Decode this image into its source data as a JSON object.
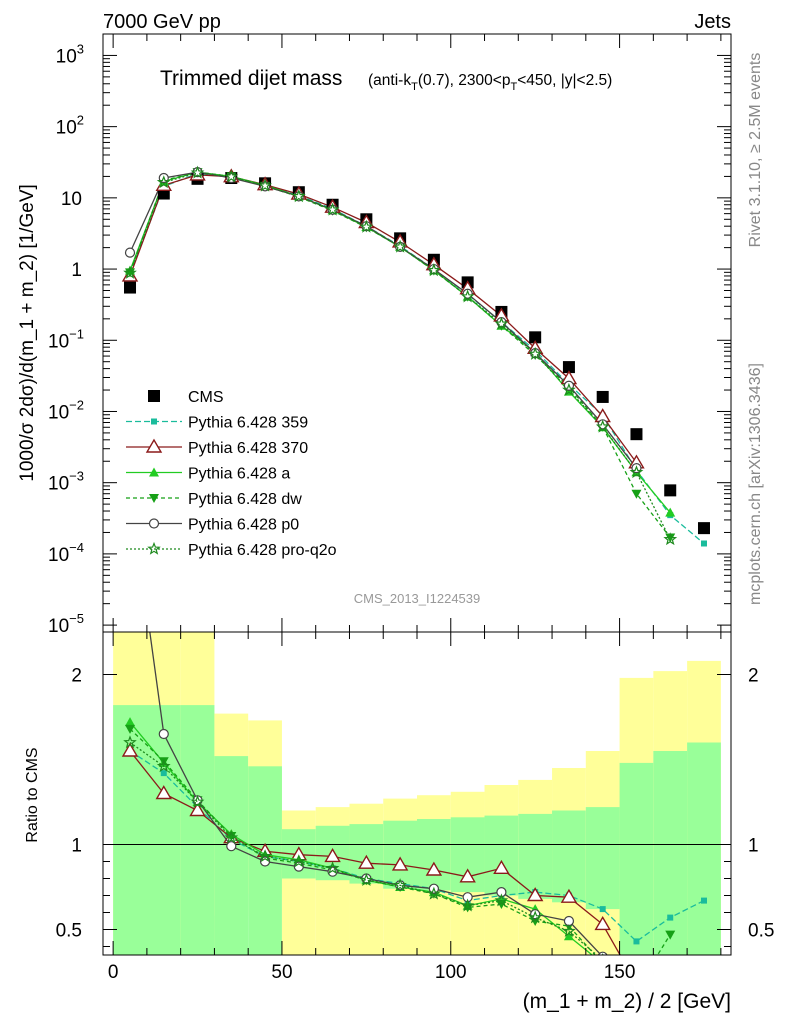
{
  "header": {
    "left": "7000 GeV pp",
    "right": "Jets"
  },
  "side_labels": {
    "rivet": "Rivet 3.1.10, ≥ 2.5M events",
    "mcplots": "mcplots.cern.ch [arXiv:1306.3436]"
  },
  "colors": {
    "data": "#000000",
    "p359": "#1abc9c",
    "p370": "#8b1a1a",
    "a": "#22cc22",
    "dw": "#16a016",
    "p0": "#444444",
    "proq2o": "#1e8a1e",
    "band_yellow": "#ffff99",
    "band_green": "#99ff99"
  },
  "chart_data": [
    {
      "type": "scatter",
      "title": "Trimmed dijet mass",
      "subtitle": "(anti-k_T(0.7), 2300<p_T<450, |y|<2.5)",
      "watermark": "CMS_2013_I1224539",
      "xlabel": "(m_1 + m_2) / 2 [GeV]",
      "ylabel": "1000/σ 2dσ)/d(m_1 + m_2) [1/GeV]",
      "yscale": "log",
      "xlim": [
        -3,
        183
      ],
      "ylim": [
        8e-06,
        2000
      ],
      "x_ticks": [
        0,
        50,
        100,
        150
      ],
      "y_ticks": [
        {
          "v": 1e-05,
          "m": "10",
          "e": "−5"
        },
        {
          "v": 0.0001,
          "m": "10",
          "e": "−4"
        },
        {
          "v": 0.001,
          "m": "10",
          "e": "−3"
        },
        {
          "v": 0.01,
          "m": "10",
          "e": "−2"
        },
        {
          "v": 0.1,
          "m": "10",
          "e": "−1"
        },
        {
          "v": 1,
          "m": "1",
          "e": ""
        },
        {
          "v": 10,
          "m": "10",
          "e": ""
        },
        {
          "v": 100,
          "m": "10",
          "e": "2"
        },
        {
          "v": 1000,
          "m": "10",
          "e": "3"
        }
      ],
      "legend_position": "center-left",
      "x": [
        5,
        15,
        25,
        35,
        45,
        55,
        65,
        75,
        85,
        95,
        105,
        115,
        125,
        135,
        145,
        155,
        165,
        175
      ],
      "series": [
        {
          "name": "CMS",
          "key": "data",
          "style": "data",
          "values": [
            0.55,
            11.5,
            18.5,
            19.0,
            16.0,
            12.0,
            8.0,
            5.0,
            2.7,
            1.35,
            0.65,
            0.25,
            0.11,
            0.042,
            0.016,
            0.0048,
            0.00078,
            0.00023
          ]
        },
        {
          "name": "Pythia 6.428 359",
          "key": "p359",
          "style": "square-dash",
          "values": [
            0.85,
            14.5,
            22.0,
            19.5,
            15.0,
            10.8,
            7.0,
            4.0,
            2.1,
            1.0,
            0.44,
            0.18,
            0.072,
            0.024,
            0.0088,
            0.0015,
            0.00035,
            0.00014
          ]
        },
        {
          "name": "Pythia 6.428 370",
          "key": "p370",
          "style": "triangle-open",
          "values": [
            0.8,
            15.0,
            21.0,
            19.8,
            15.3,
            11.3,
            7.4,
            4.5,
            2.4,
            1.15,
            0.53,
            0.22,
            0.077,
            0.029,
            0.0085,
            0.0019,
            null,
            null
          ]
        },
        {
          "name": "Pythia 6.428 a",
          "key": "a",
          "style": "triangle-solid",
          "values": [
            0.95,
            17.0,
            23.0,
            20.0,
            15.0,
            10.5,
            6.7,
            3.9,
            2.05,
            0.96,
            0.41,
            0.16,
            0.068,
            0.019,
            0.006,
            0.0014,
            0.00038,
            null
          ]
        },
        {
          "name": "Pythia 6.428 dw",
          "key": "dw",
          "style": "invtriangle-dash",
          "values": [
            0.9,
            17.5,
            23.0,
            20.0,
            14.7,
            10.3,
            6.6,
            3.85,
            2.05,
            0.95,
            0.41,
            0.16,
            0.062,
            0.022,
            0.0061,
            0.0007,
            0.00017,
            null
          ]
        },
        {
          "name": "Pythia 6.428 p0",
          "key": "p0",
          "style": "circle-open",
          "values": [
            1.7,
            19.0,
            23.0,
            19.0,
            14.5,
            10.5,
            6.8,
            4.0,
            2.05,
            1.0,
            0.45,
            0.18,
            0.066,
            0.023,
            0.0066,
            0.0016,
            null,
            null
          ]
        },
        {
          "name": "Pythia 6.428 pro-q2o",
          "key": "proq2o",
          "style": "star-dot",
          "values": [
            0.88,
            16.5,
            22.5,
            19.8,
            14.8,
            10.5,
            6.8,
            3.9,
            2.05,
            0.96,
            0.41,
            0.17,
            0.064,
            0.02,
            0.0061,
            0.0014,
            0.00016,
            null
          ]
        }
      ]
    },
    {
      "type": "line",
      "ylabel": "Ratio to CMS",
      "xlabel": "(m_1 + m_2) / 2 [GeV]",
      "xlim": [
        -3,
        183
      ],
      "ylim": [
        0.35,
        2.25
      ],
      "x_ticks": [
        0,
        50,
        100,
        150
      ],
      "y_ticks": [
        0.5,
        1,
        2
      ],
      "reference_line": 1,
      "bands": {
        "edges": [
          0,
          20,
          30,
          40,
          50,
          60,
          70,
          80,
          90,
          100,
          110,
          120,
          130,
          140,
          150,
          160,
          170,
          180
        ],
        "yellow_low": [
          0.35,
          0.35,
          0.58,
          0.71,
          0.35,
          0.35,
          0.35,
          0.35,
          0.35,
          0.35,
          0.35,
          0.35,
          0.35,
          0.35,
          0.35,
          0.35,
          0.35
        ],
        "yellow_high": [
          2.25,
          2.25,
          1.77,
          1.73,
          1.2,
          1.22,
          1.24,
          1.27,
          1.29,
          1.31,
          1.35,
          1.38,
          1.45,
          1.55,
          1.98,
          2.02,
          2.08
        ],
        "green_low": [
          0.35,
          0.35,
          0.35,
          0.35,
          0.8,
          0.79,
          0.77,
          0.74,
          0.73,
          0.72,
          0.7,
          0.68,
          0.66,
          0.62,
          0.35,
          0.35,
          0.35
        ],
        "green_high": [
          1.82,
          1.82,
          1.52,
          1.46,
          1.09,
          1.11,
          1.12,
          1.14,
          1.15,
          1.16,
          1.17,
          1.18,
          1.2,
          1.22,
          1.48,
          1.55,
          1.6
        ]
      },
      "series": [
        {
          "key": "p359",
          "style": "square-dash",
          "values": [
            1.55,
            1.42,
            1.22,
            1.03,
            0.93,
            0.9,
            0.86,
            0.8,
            0.77,
            0.74,
            0.67,
            0.7,
            0.72,
            0.7,
            0.62,
            0.43,
            0.57,
            0.67
          ]
        },
        {
          "key": "p370",
          "style": "triangle-open",
          "values": [
            1.55,
            1.3,
            1.2,
            1.04,
            0.96,
            0.94,
            0.93,
            0.89,
            0.88,
            0.85,
            0.81,
            0.86,
            0.7,
            0.69,
            0.53,
            0.18,
            null,
            null
          ]
        },
        {
          "key": "a",
          "style": "triangle-solid",
          "values": [
            1.72,
            1.48,
            1.25,
            1.06,
            0.94,
            0.91,
            0.86,
            0.79,
            0.75,
            0.72,
            0.64,
            0.68,
            0.62,
            0.46,
            0.3,
            null,
            null,
            null
          ]
        },
        {
          "key": "dw",
          "style": "invtriangle-dash",
          "values": [
            1.68,
            1.49,
            1.26,
            1.05,
            0.92,
            0.89,
            0.85,
            0.79,
            0.75,
            0.71,
            0.63,
            0.65,
            0.55,
            0.52,
            0.3,
            0.15,
            0.47,
            null
          ]
        },
        {
          "key": "p0",
          "style": "circle-open",
          "values": [
            3.1,
            1.65,
            1.26,
            0.99,
            0.9,
            0.87,
            0.84,
            0.8,
            0.76,
            0.74,
            0.69,
            0.72,
            0.59,
            0.55,
            0.34,
            null,
            null,
            null
          ]
        },
        {
          "key": "proq2o",
          "style": "star-dot",
          "values": [
            1.6,
            1.46,
            1.25,
            1.04,
            0.93,
            0.9,
            0.86,
            0.79,
            0.76,
            0.71,
            0.64,
            0.67,
            0.57,
            0.49,
            0.32,
            null,
            null,
            null
          ]
        }
      ]
    }
  ]
}
